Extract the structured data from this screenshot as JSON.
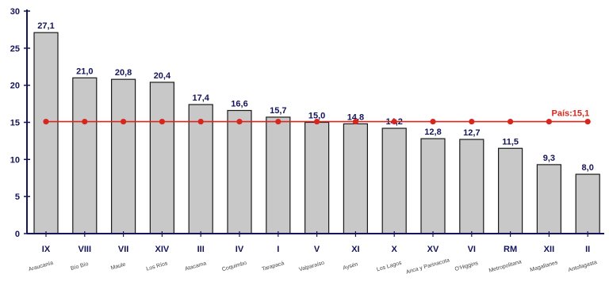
{
  "chart_data": {
    "type": "bar",
    "categories": [
      "IX",
      "VIII",
      "VII",
      "XIV",
      "III",
      "IV",
      "I",
      "V",
      "XI",
      "X",
      "XV",
      "VI",
      "RM",
      "XII",
      "II"
    ],
    "region_names": [
      "Araucanía",
      "Bío Bío",
      "Maule",
      "Los Ríos",
      "Atacama",
      "Coquimbo",
      "Tarapacá",
      "Valparaíso",
      "Aysén",
      "Los Lagos",
      "Arica y Parinacota",
      "O'Higgins",
      "Metropolitana",
      "Magallanes",
      "Antofagasta"
    ],
    "values": [
      27.1,
      21.0,
      20.8,
      20.4,
      17.4,
      16.6,
      15.7,
      15.0,
      14.8,
      14.2,
      12.8,
      12.7,
      11.5,
      9.3,
      8.0
    ],
    "value_labels": [
      "27,1",
      "21,0",
      "20,8",
      "20,4",
      "17,4",
      "16,6",
      "15,7",
      "15,0",
      "14,8",
      "14,2",
      "12,8",
      "12,7",
      "11,5",
      "9,3",
      "8,0"
    ],
    "reference_line": {
      "label": "País:15,1",
      "value": 15.1,
      "color": "#d7261e"
    },
    "yticks": [
      "0",
      "5",
      "10",
      "15",
      "20",
      "25",
      "30"
    ],
    "ylim": [
      0,
      30
    ],
    "grid": false,
    "bar_color": "#c8c8c8",
    "bar_edge_color": "#1a1a1a",
    "axis_color": "#14145a"
  }
}
